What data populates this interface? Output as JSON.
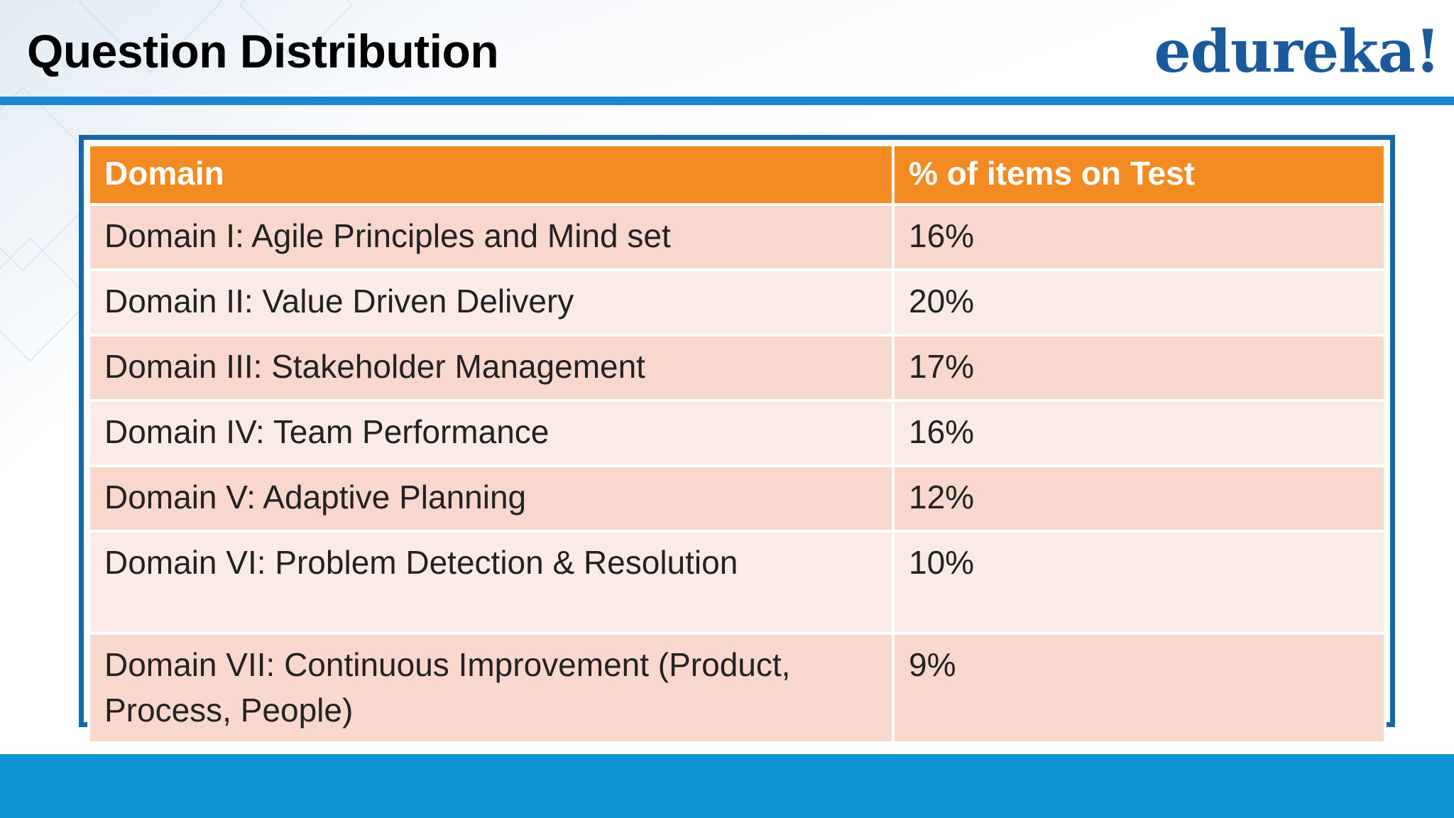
{
  "slide": {
    "title": "Question Distribution",
    "logo_text": "edureka!"
  },
  "colors": {
    "title_text": "#000000",
    "logo": "#1a5a9a",
    "header_rule": "#1a86cf",
    "table_frame": "#1567a6",
    "table_header_bg": "#f28c22",
    "row_odd_bg": "#f8d8cc",
    "row_even_bg": "#fbebe6",
    "footer_band": "#0d95d6"
  },
  "table": {
    "headers": [
      "Domain",
      "% of items on Test"
    ],
    "rows": [
      {
        "domain": "Domain I: Agile Principles and Mind set",
        "percent": "16%"
      },
      {
        "domain": "Domain II: Value Driven Delivery",
        "percent": "20%"
      },
      {
        "domain": "Domain III: Stakeholder Management",
        "percent": "17%"
      },
      {
        "domain": "Domain IV: Team Performance",
        "percent": "16%"
      },
      {
        "domain": "Domain V: Adaptive Planning",
        "percent": "12%"
      },
      {
        "domain": "Domain VI: Problem Detection & Resolution",
        "percent": "10%"
      },
      {
        "domain": "Domain VII: Continuous Improvement (Product, Process, People)",
        "percent": "9%"
      }
    ]
  }
}
